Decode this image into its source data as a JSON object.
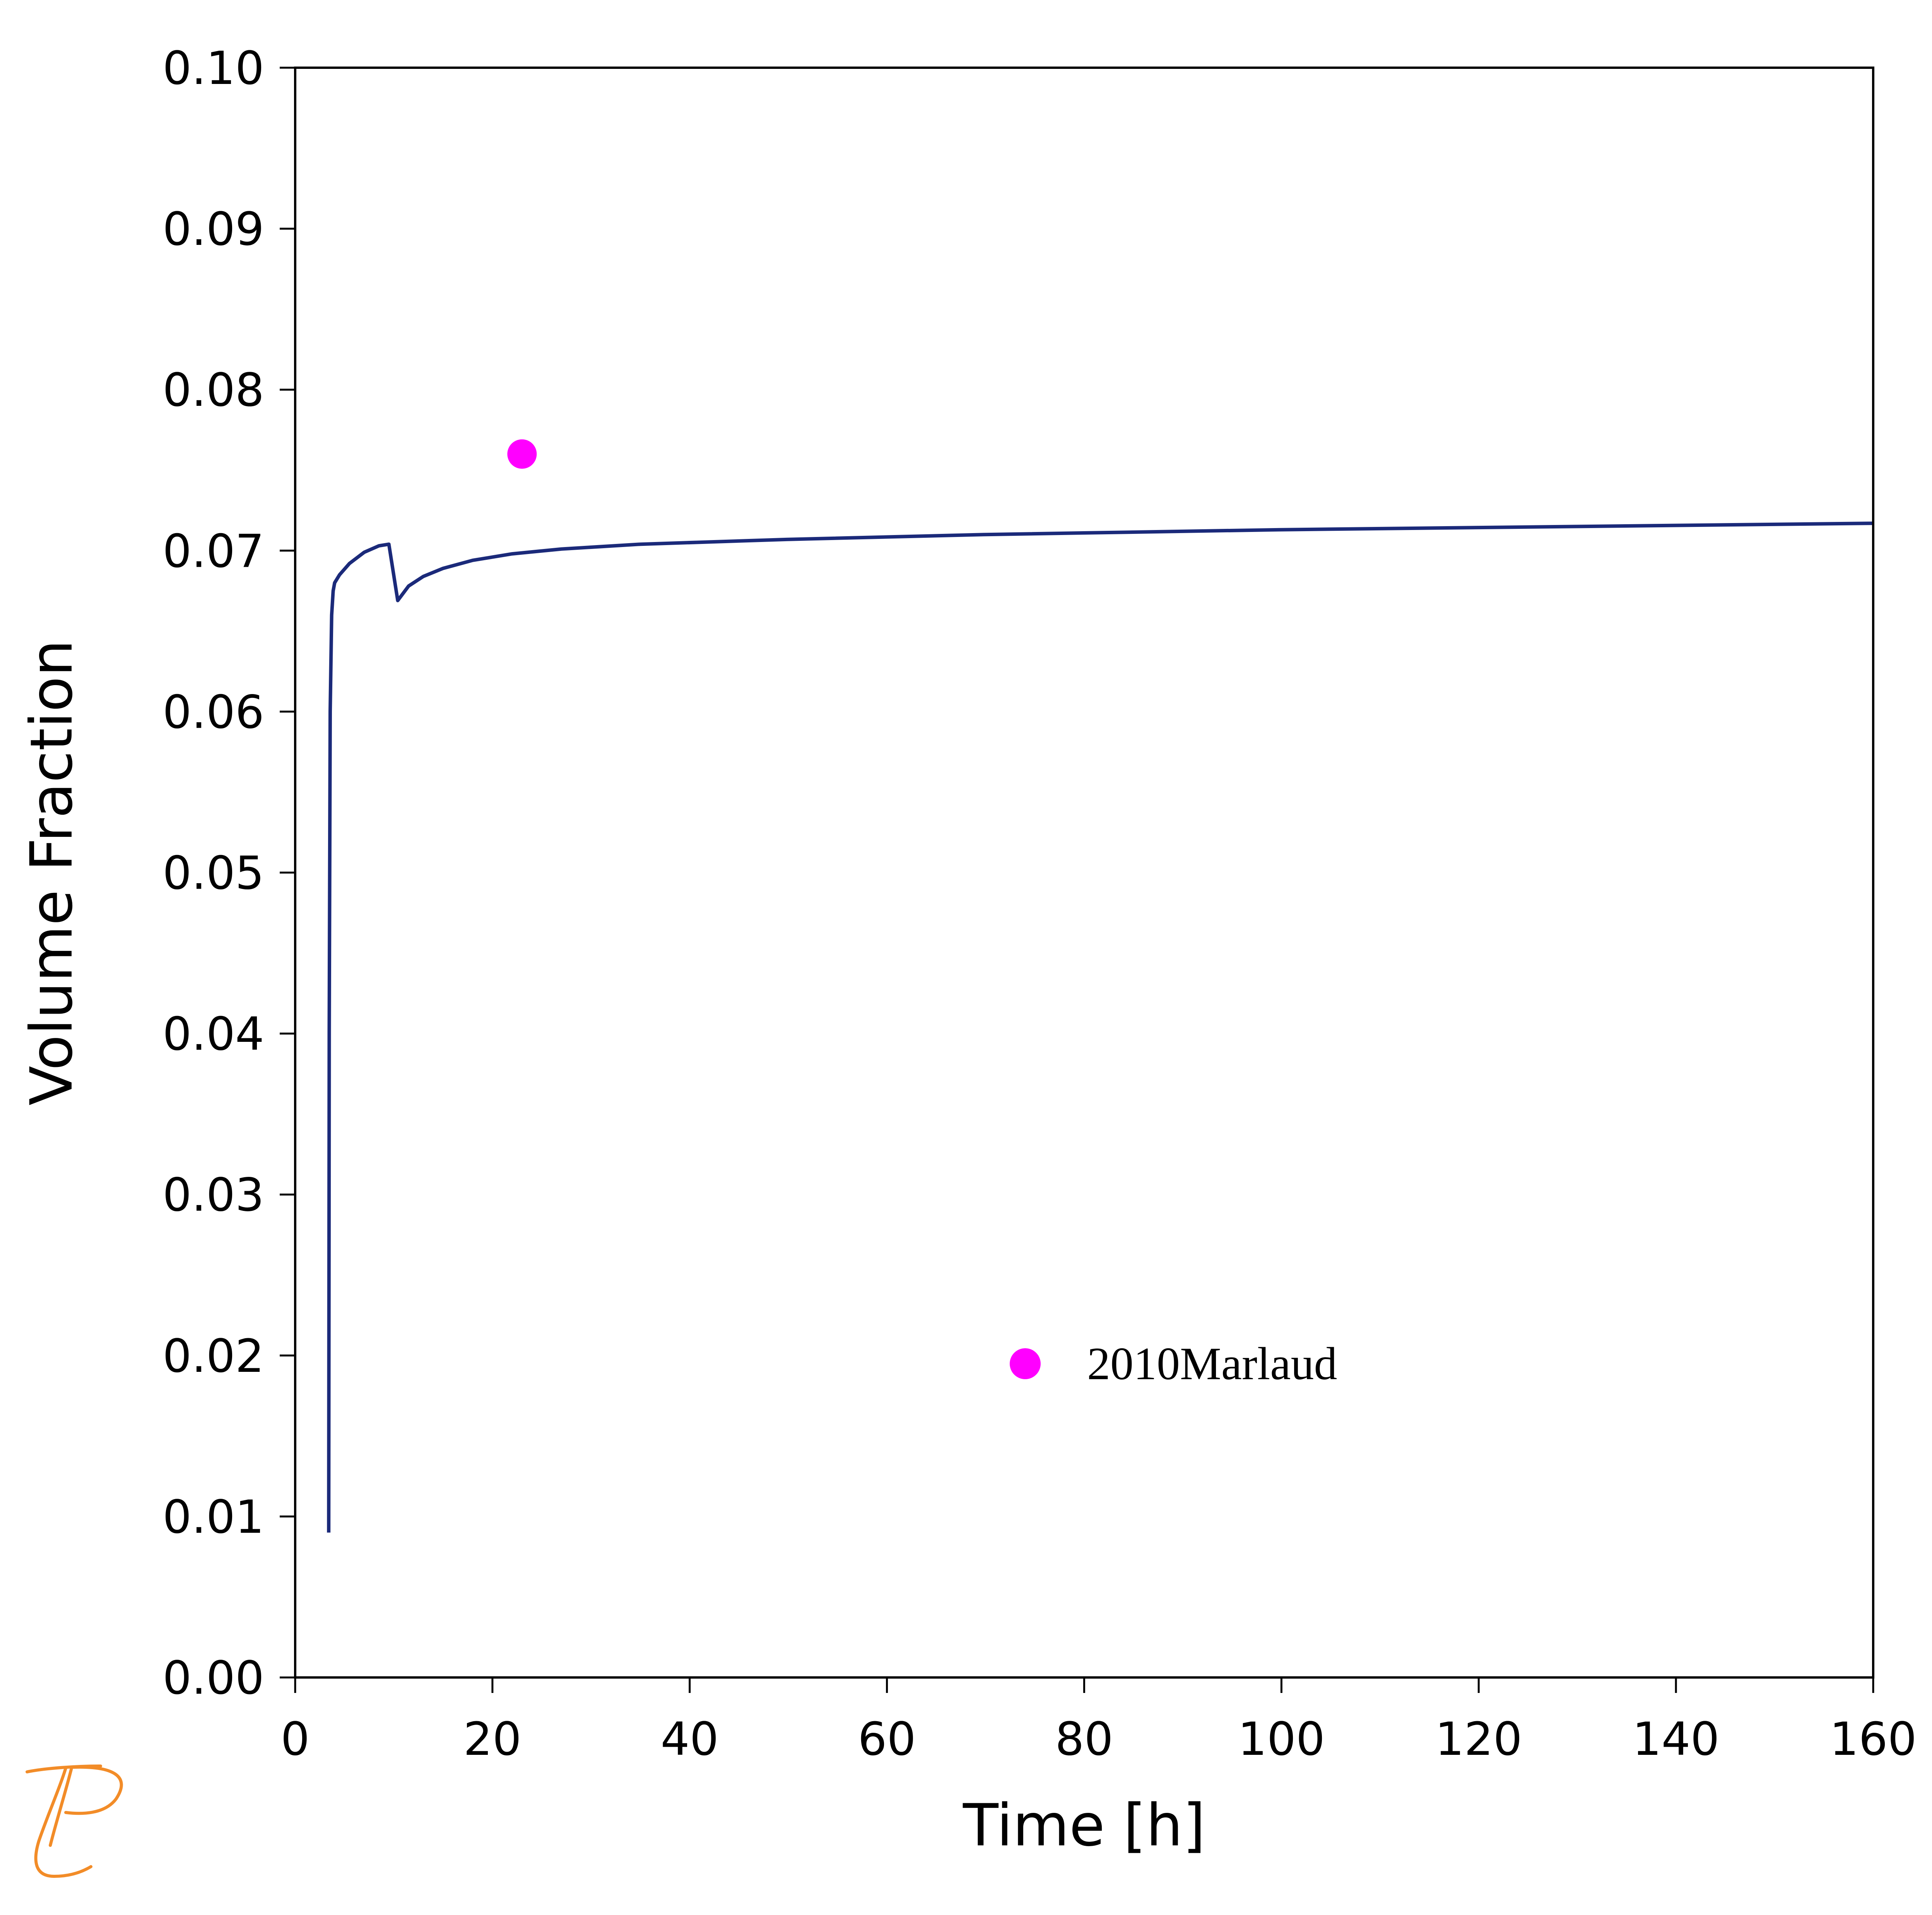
{
  "chart_data": {
    "type": "line",
    "title": "",
    "xlabel": "Time [h]",
    "ylabel": "Volume Fraction",
    "xlim": [
      0,
      160
    ],
    "ylim": [
      0.0,
      0.1
    ],
    "x_ticks": [
      "0",
      "20",
      "40",
      "60",
      "80",
      "100",
      "120",
      "140",
      "160"
    ],
    "y_ticks": [
      "0.00",
      "0.01",
      "0.02",
      "0.03",
      "0.04",
      "0.05",
      "0.06",
      "0.07",
      "0.08",
      "0.09",
      "0.10"
    ],
    "grid": false,
    "series": [
      {
        "type": "line",
        "color": "#1b2a7a",
        "x": [
          3.4,
          3.45,
          3.55,
          3.7,
          3.85,
          4.0,
          4.5,
          5.5,
          7.0,
          8.5,
          9.5,
          10.4,
          11.5,
          13,
          15,
          18,
          22,
          27,
          35,
          50,
          70,
          100,
          130,
          160
        ],
        "y": [
          0.009,
          0.04,
          0.06,
          0.066,
          0.0675,
          0.068,
          0.0685,
          0.0692,
          0.0699,
          0.0703,
          0.0704,
          0.0669,
          0.0678,
          0.0684,
          0.0689,
          0.0694,
          0.0698,
          0.0701,
          0.0704,
          0.0707,
          0.071,
          0.0713,
          0.0715,
          0.0717
        ]
      },
      {
        "type": "scatter",
        "name": "2010Marlaud",
        "color": "#ff00ff",
        "x": [
          23
        ],
        "y": [
          0.076
        ]
      }
    ],
    "legend": {
      "position": "center-lower",
      "entries": [
        {
          "label": "2010Marlaud",
          "color": "#ff00ff",
          "marker": "circle"
        }
      ]
    }
  },
  "logo": {
    "icon": "thermo-calc-logo-icon",
    "color": "#f28c28"
  }
}
